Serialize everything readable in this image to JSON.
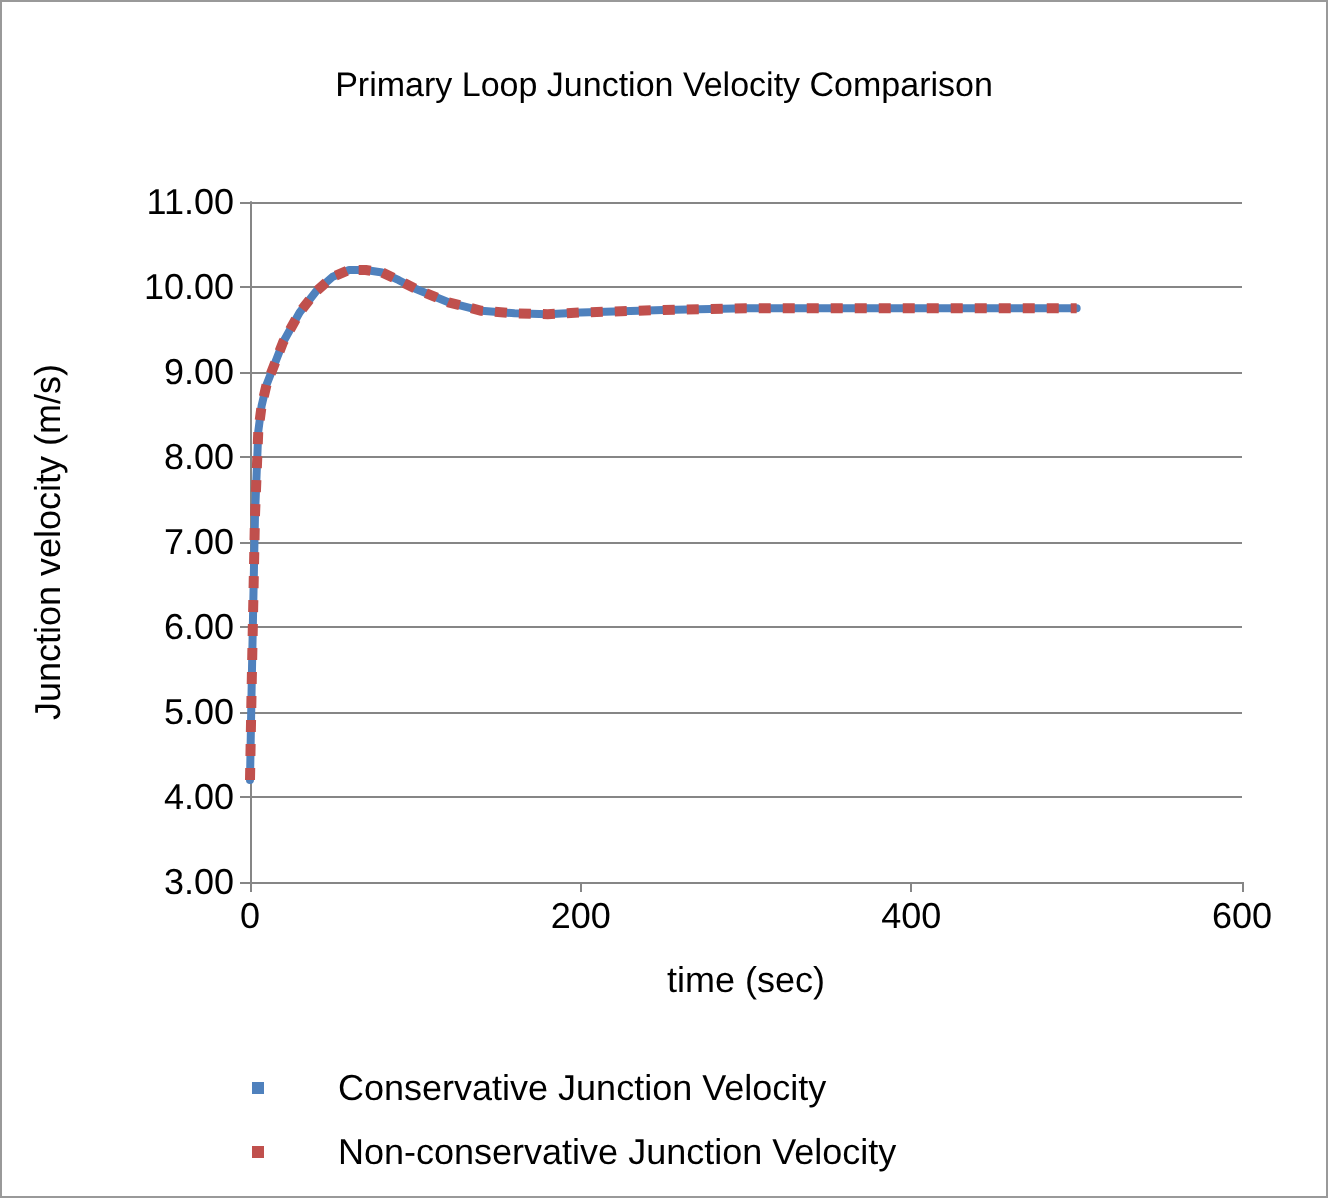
{
  "chart_data": {
    "type": "line",
    "title": "Primary Loop Junction Velocity Comparison",
    "xlabel": "time (sec)",
    "ylabel": "Junction velocity (m/s)",
    "x": [
      0,
      1,
      2,
      3,
      4,
      5,
      7,
      10,
      15,
      20,
      30,
      40,
      50,
      60,
      70,
      80,
      90,
      100,
      120,
      140,
      160,
      180,
      200,
      250,
      300,
      350,
      400,
      450,
      500
    ],
    "series": [
      {
        "name": "Conservative Junction Velocity",
        "color": "#4f81bd",
        "line_style": "solid",
        "values": [
          4.2,
          5.3,
          6.3,
          7.3,
          7.8,
          8.3,
          8.6,
          8.85,
          9.1,
          9.35,
          9.7,
          9.95,
          10.12,
          10.2,
          10.2,
          10.17,
          10.08,
          9.98,
          9.82,
          9.72,
          9.69,
          9.68,
          9.7,
          9.73,
          9.75,
          9.75,
          9.75,
          9.75,
          9.75
        ]
      },
      {
        "name": "Non-conservative Junction Velocity",
        "color": "#c0504d",
        "line_style": "dashed",
        "values": [
          4.2,
          5.3,
          6.3,
          7.3,
          7.8,
          8.3,
          8.6,
          8.85,
          9.1,
          9.35,
          9.7,
          9.95,
          10.12,
          10.2,
          10.2,
          10.17,
          10.08,
          9.98,
          9.82,
          9.72,
          9.69,
          9.68,
          9.7,
          9.73,
          9.75,
          9.75,
          9.75,
          9.75,
          9.75
        ]
      }
    ],
    "xlim": [
      0,
      600
    ],
    "xticks": [
      0,
      200,
      400,
      600
    ],
    "ylim": [
      3,
      11
    ],
    "yticks": [
      {
        "value": 3,
        "label": "3.00"
      },
      {
        "value": 4,
        "label": "4.00"
      },
      {
        "value": 5,
        "label": "5.00"
      },
      {
        "value": 6,
        "label": "6.00"
      },
      {
        "value": 7,
        "label": "7.00"
      },
      {
        "value": 8,
        "label": "8.00"
      },
      {
        "value": 9,
        "label": "9.00"
      },
      {
        "value": 10,
        "label": "10.00"
      },
      {
        "value": 11,
        "label": "11.00"
      }
    ],
    "grid": "y",
    "legend": "bottom",
    "marker": "none"
  }
}
